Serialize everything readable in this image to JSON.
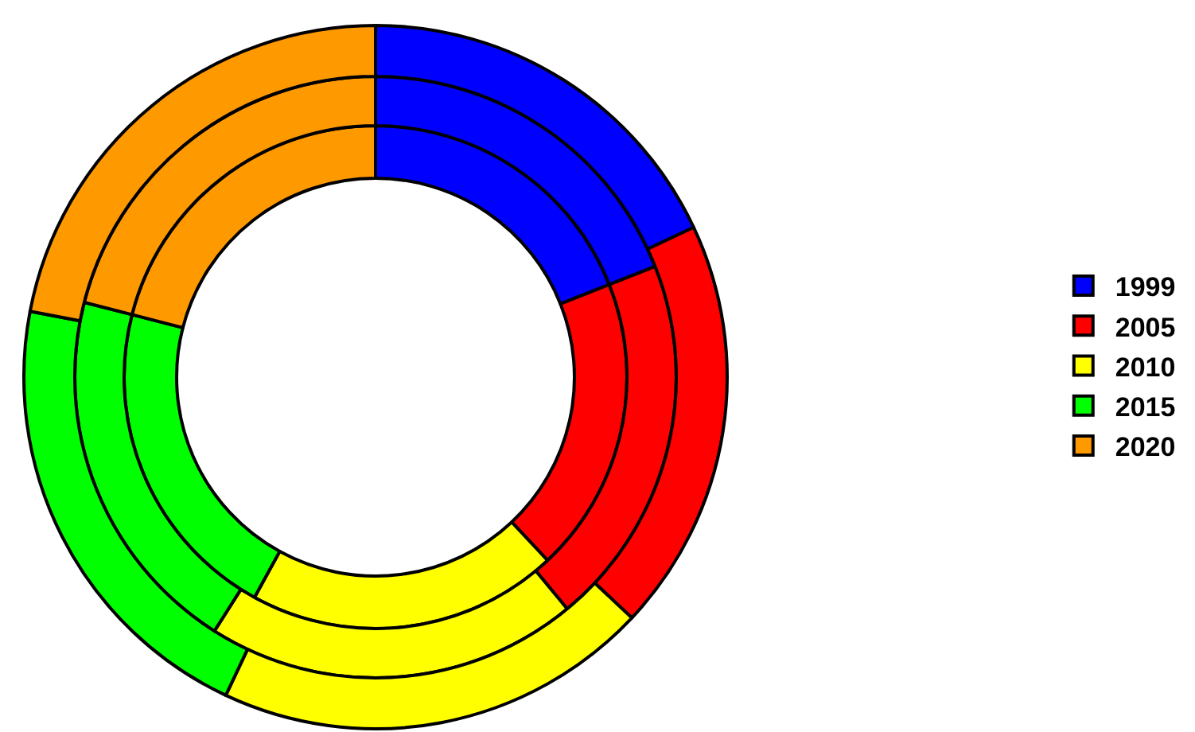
{
  "chart_data": {
    "type": "donut",
    "categories": [
      "1999",
      "2005",
      "2010",
      "2015",
      "2020"
    ],
    "colors": [
      "#0000ff",
      "#ff0000",
      "#ffff00",
      "#00ff00",
      "#ff9900"
    ],
    "series": [
      {
        "values": [
          19,
          19,
          20,
          21,
          21
        ]
      },
      {
        "values": [
          19,
          20,
          20,
          20,
          21
        ]
      },
      {
        "values": [
          18,
          19,
          20,
          21,
          22
        ]
      }
    ],
    "legend": "right"
  }
}
